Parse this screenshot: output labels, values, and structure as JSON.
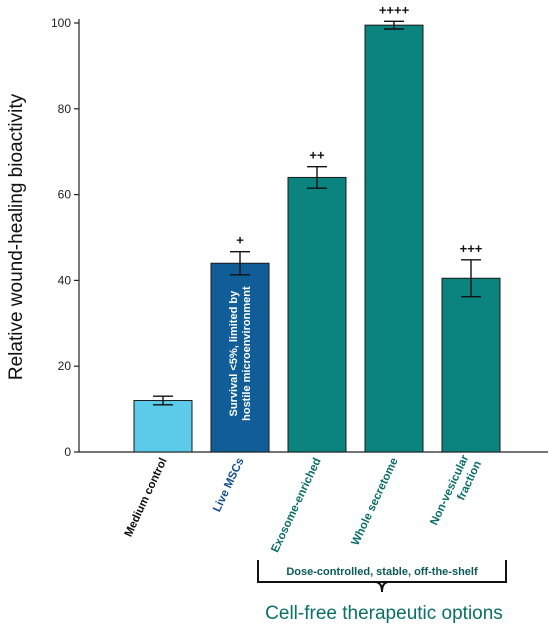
{
  "chart_data": {
    "type": "bar",
    "ylabel": "Relative wound-healing bioactivity",
    "xlabel": "",
    "ylim": [
      0,
      100
    ],
    "yticks": [
      0,
      20,
      40,
      60,
      80,
      100
    ],
    "grid": false,
    "categories": [
      "Medium control",
      "Live MSCs",
      "Exosome-enriched",
      "Whole secretome",
      "Non-vesicular fraction"
    ],
    "category_lines": [
      [
        "Medium control"
      ],
      [
        "Live MSCs"
      ],
      [
        "Exosome-enriched"
      ],
      [
        "Whole secretome"
      ],
      [
        "Non-vesicular",
        "fraction"
      ]
    ],
    "values": [
      12,
      44,
      64,
      99.5,
      40.5
    ],
    "errors": [
      1,
      2.7,
      2.5,
      0.9,
      4.3
    ],
    "significance": [
      "",
      "+",
      "++",
      "++++",
      "+++"
    ],
    "bar_colors": [
      "#5ccbea",
      "#105d98",
      "#0b837e",
      "#0b837e",
      "#0b837e"
    ],
    "label_colors": [
      "#111111",
      "#154f8c",
      "#0b6e69",
      "#0b6e69",
      "#0b6e69"
    ],
    "in_bar_annotation": {
      "bar": 1,
      "lines": [
        "Survival <5%, limited by",
        "hostile microenvironment"
      ]
    },
    "group_annotation": {
      "bars": [
        2,
        4
      ],
      "subtitle": "Dose-controlled, stable, off-the-shelf",
      "title": "Cell-free therapeutic options"
    }
  }
}
